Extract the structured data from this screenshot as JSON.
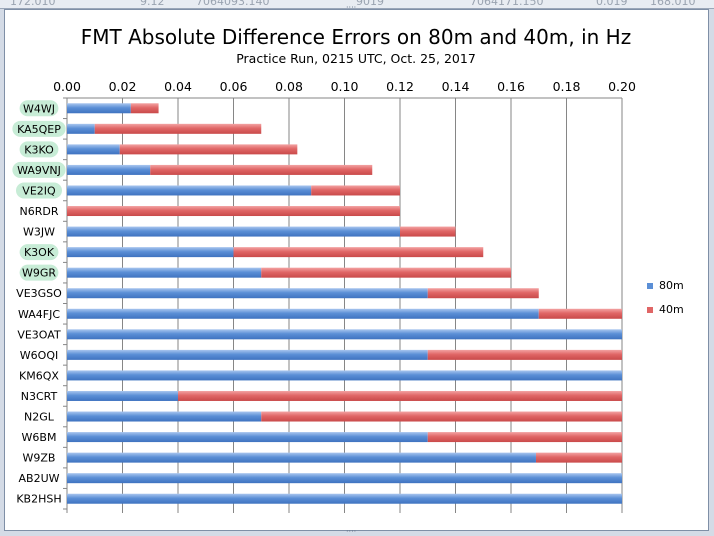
{
  "top_strip_text": [
    "172.010",
    "7064093.140",
    "9.12",
    "9019",
    "7064171.150",
    "0.019",
    "168.010"
  ],
  "colors": {
    "series_80m": "#5b8fd6",
    "series_40m": "#e06666",
    "highlight_label": "#c7ecd6",
    "grid": "#868686"
  },
  "chart_data": {
    "type": "bar",
    "orientation": "horizontal",
    "stacked": true,
    "title": "FMT Absolute Difference Errors on 80m and 40m, in Hz",
    "subtitle": "Practice Run, 0215 UTC, Oct. 25, 2017",
    "xlim": [
      0,
      0.2
    ],
    "xticks": [
      "0.00",
      "0.02",
      "0.04",
      "0.06",
      "0.08",
      "0.10",
      "0.12",
      "0.14",
      "0.16",
      "0.18",
      "0.20"
    ],
    "grid": true,
    "legend_position": "right",
    "categories": [
      "W4WJ",
      "KA5QEP",
      "K3KO",
      "WA9VNJ",
      "VE2IQ",
      "N6RDR",
      "W3JW",
      "K3OK",
      "W9GR",
      "VE3GSO",
      "WA4FJC",
      "VE3OAT",
      "W6OQI",
      "KM6QX",
      "N3CRT",
      "N2GL",
      "W6BM",
      "W9ZB",
      "AB2UW",
      "KB2HSH"
    ],
    "highlighted": [
      "W4WJ",
      "KA5QEP",
      "K3KO",
      "WA9VNJ",
      "VE2IQ",
      "K3OK",
      "W9GR"
    ],
    "series": [
      {
        "name": "80m",
        "values": [
          0.023,
          0.01,
          0.019,
          0.03,
          0.088,
          0.0,
          0.12,
          0.06,
          0.07,
          0.13,
          0.17,
          0.2,
          0.13,
          0.2,
          0.04,
          0.07,
          0.13,
          0.169,
          0.2,
          0.2
        ]
      },
      {
        "name": "40m",
        "values": [
          0.01,
          0.06,
          0.064,
          0.08,
          0.032,
          0.12,
          0.02,
          0.09,
          0.09,
          0.04,
          0.03,
          0.0,
          0.07,
          0.0,
          0.16,
          0.13,
          0.07,
          0.031,
          0.0,
          0.0
        ]
      }
    ]
  }
}
